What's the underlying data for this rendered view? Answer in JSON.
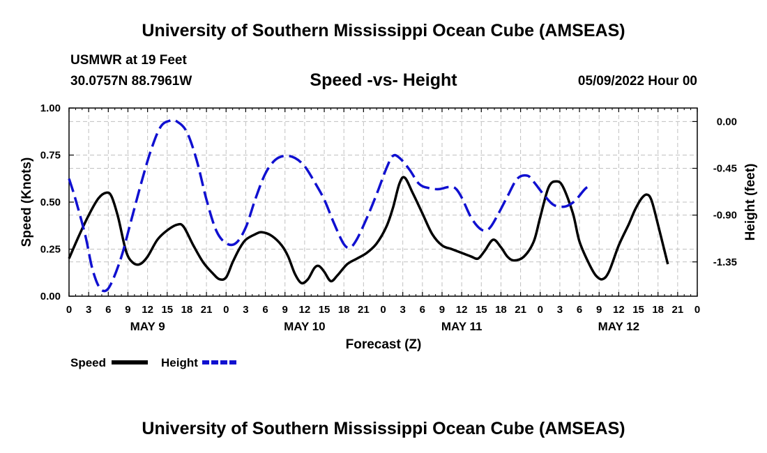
{
  "page": {
    "title": "University of Southern Mississippi Ocean Cube (AMSEAS)",
    "footer_title": "University of Southern Mississippi Ocean Cube (AMSEAS)",
    "station": "USMWR at 19 Feet",
    "location": "30.0757N  88.7961W",
    "subtitle": "Speed -vs- Height",
    "date_label": "05/09/2022 Hour 00"
  },
  "chart_data": {
    "type": "line",
    "title": "Speed -vs- Height",
    "xlabel": "Forecast (Z)",
    "ylabel": "Speed (Knots)",
    "y2label": "Height (feet)",
    "xlim": [
      0,
      96
    ],
    "ylim": [
      0,
      1
    ],
    "y2lim": [
      -1.68,
      0.13
    ],
    "grid": true,
    "x_tick_values": [
      0,
      3,
      6,
      9,
      12,
      15,
      18,
      21,
      24,
      27,
      30,
      33,
      36,
      39,
      42,
      45,
      48,
      51,
      54,
      57,
      60,
      63,
      66,
      69,
      72,
      75,
      78,
      81,
      84,
      87,
      90,
      93,
      96
    ],
    "x_tick_labels": [
      "0",
      "3",
      "6",
      "9",
      "12",
      "15",
      "18",
      "21",
      "0",
      "3",
      "6",
      "9",
      "12",
      "15",
      "18",
      "21",
      "0",
      "3",
      "6",
      "9",
      "12",
      "15",
      "18",
      "21",
      "0",
      "3",
      "6",
      "9",
      "12",
      "15",
      "18",
      "21",
      "0"
    ],
    "day_labels": [
      {
        "x": 12,
        "label": "MAY 9"
      },
      {
        "x": 36,
        "label": "MAY 10"
      },
      {
        "x": 60,
        "label": "MAY 11"
      },
      {
        "x": 84,
        "label": "MAY 12"
      }
    ],
    "y_ticks": [
      {
        "value": 0,
        "label": "0.00"
      },
      {
        "value": 0.25,
        "label": "0.25"
      },
      {
        "value": 0.5,
        "label": "0.50"
      },
      {
        "value": 0.75,
        "label": "0.75"
      },
      {
        "value": 1,
        "label": "1.00"
      }
    ],
    "y2_ticks": [
      {
        "value": 0.0,
        "label": "0.00"
      },
      {
        "value": -0.45,
        "label": "-0.45"
      },
      {
        "value": -0.9,
        "label": "-0.90"
      },
      {
        "value": -1.35,
        "label": "-1.35"
      }
    ],
    "legend": [
      {
        "name": "Speed",
        "color": "#000000",
        "dashed": false
      },
      {
        "name": "Height",
        "color": "#1010d0",
        "dashed": true
      }
    ],
    "series": [
      {
        "name": "Speed",
        "axis": "left",
        "color": "#000000",
        "points": [
          [
            0,
            0.2
          ],
          [
            1.5,
            0.32
          ],
          [
            3,
            0.43
          ],
          [
            4.5,
            0.52
          ],
          [
            5.7,
            0.55
          ],
          [
            6.5,
            0.53
          ],
          [
            7.5,
            0.42
          ],
          [
            8.7,
            0.24
          ],
          [
            9.7,
            0.18
          ],
          [
            10.8,
            0.17
          ],
          [
            12,
            0.21
          ],
          [
            13.5,
            0.3
          ],
          [
            15,
            0.35
          ],
          [
            16.5,
            0.38
          ],
          [
            17.5,
            0.37
          ],
          [
            19,
            0.27
          ],
          [
            20.5,
            0.18
          ],
          [
            22,
            0.12
          ],
          [
            23,
            0.09
          ],
          [
            24,
            0.1
          ],
          [
            25,
            0.18
          ],
          [
            26,
            0.25
          ],
          [
            27,
            0.3
          ],
          [
            28.5,
            0.33
          ],
          [
            29.5,
            0.34
          ],
          [
            31,
            0.32
          ],
          [
            32.5,
            0.27
          ],
          [
            33.5,
            0.21
          ],
          [
            34.5,
            0.12
          ],
          [
            35.5,
            0.07
          ],
          [
            36.5,
            0.09
          ],
          [
            37.5,
            0.15
          ],
          [
            38.2,
            0.16
          ],
          [
            39,
            0.13
          ],
          [
            40,
            0.08
          ],
          [
            41,
            0.11
          ],
          [
            42.5,
            0.17
          ],
          [
            44,
            0.2
          ],
          [
            45.5,
            0.23
          ],
          [
            47,
            0.28
          ],
          [
            48.5,
            0.37
          ],
          [
            49.5,
            0.47
          ],
          [
            50.5,
            0.6
          ],
          [
            51.3,
            0.63
          ],
          [
            52.5,
            0.55
          ],
          [
            54,
            0.44
          ],
          [
            55.5,
            0.33
          ],
          [
            57,
            0.27
          ],
          [
            58.5,
            0.25
          ],
          [
            60,
            0.23
          ],
          [
            61.5,
            0.21
          ],
          [
            62.5,
            0.2
          ],
          [
            63.5,
            0.24
          ],
          [
            64.8,
            0.3
          ],
          [
            66,
            0.26
          ],
          [
            67,
            0.21
          ],
          [
            68,
            0.19
          ],
          [
            69.5,
            0.21
          ],
          [
            71,
            0.29
          ],
          [
            72,
            0.42
          ],
          [
            73.3,
            0.58
          ],
          [
            74.5,
            0.61
          ],
          [
            75.5,
            0.58
          ],
          [
            77,
            0.44
          ],
          [
            78,
            0.29
          ],
          [
            79.5,
            0.17
          ],
          [
            80.5,
            0.11
          ],
          [
            81.5,
            0.09
          ],
          [
            82.5,
            0.13
          ],
          [
            84,
            0.27
          ],
          [
            85.5,
            0.38
          ],
          [
            86.5,
            0.46
          ],
          [
            87.5,
            0.52
          ],
          [
            88.3,
            0.54
          ],
          [
            89,
            0.51
          ],
          [
            90,
            0.38
          ],
          [
            91,
            0.24
          ],
          [
            91.5,
            0.17
          ]
        ]
      },
      {
        "name": "Height",
        "axis": "right",
        "color": "#1010d0",
        "points": [
          [
            0,
            -0.55
          ],
          [
            1,
            -0.75
          ],
          [
            2.5,
            -1.1
          ],
          [
            3.5,
            -1.4
          ],
          [
            4.5,
            -1.58
          ],
          [
            5.5,
            -1.63
          ],
          [
            6.5,
            -1.55
          ],
          [
            8,
            -1.3
          ],
          [
            9.5,
            -0.95
          ],
          [
            11,
            -0.6
          ],
          [
            12.5,
            -0.28
          ],
          [
            14,
            -0.05
          ],
          [
            15.5,
            0.01
          ],
          [
            16.5,
            0.0
          ],
          [
            18,
            -0.1
          ],
          [
            19.5,
            -0.37
          ],
          [
            21,
            -0.75
          ],
          [
            22.5,
            -1.05
          ],
          [
            24,
            -1.17
          ],
          [
            25.5,
            -1.17
          ],
          [
            27,
            -1.02
          ],
          [
            28.5,
            -0.74
          ],
          [
            30,
            -0.5
          ],
          [
            31.5,
            -0.37
          ],
          [
            33,
            -0.33
          ],
          [
            34.5,
            -0.35
          ],
          [
            36,
            -0.43
          ],
          [
            37.5,
            -0.58
          ],
          [
            39,
            -0.75
          ],
          [
            40.5,
            -0.98
          ],
          [
            42,
            -1.18
          ],
          [
            43,
            -1.21
          ],
          [
            44,
            -1.13
          ],
          [
            45.5,
            -0.93
          ],
          [
            47,
            -0.7
          ],
          [
            48.5,
            -0.45
          ],
          [
            49.5,
            -0.33
          ],
          [
            50.5,
            -0.35
          ],
          [
            52,
            -0.46
          ],
          [
            53.5,
            -0.6
          ],
          [
            55,
            -0.64
          ],
          [
            56.5,
            -0.65
          ],
          [
            58,
            -0.63
          ],
          [
            59,
            -0.64
          ],
          [
            60,
            -0.73
          ],
          [
            61.5,
            -0.93
          ],
          [
            63,
            -1.04
          ],
          [
            64.2,
            -1.03
          ],
          [
            65.5,
            -0.9
          ],
          [
            67,
            -0.72
          ],
          [
            68.5,
            -0.55
          ],
          [
            70,
            -0.52
          ],
          [
            71,
            -0.58
          ],
          [
            72.5,
            -0.7
          ],
          [
            74,
            -0.8
          ],
          [
            75.5,
            -0.82
          ],
          [
            76.5,
            -0.8
          ],
          [
            77.5,
            -0.75
          ],
          [
            79,
            -0.64
          ],
          [
            80,
            -0.62
          ]
        ]
      }
    ]
  }
}
